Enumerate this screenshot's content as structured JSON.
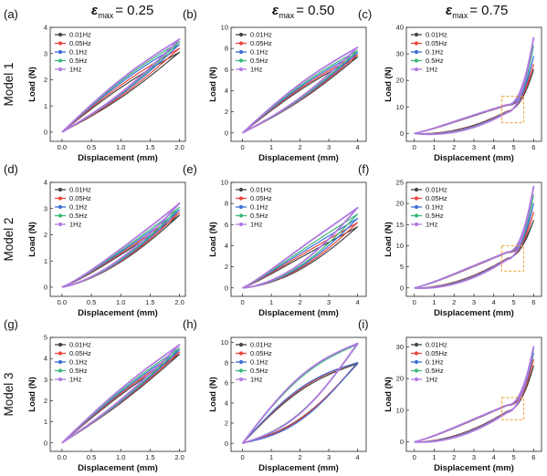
{
  "columns": [
    {
      "eps": "ε",
      "sub": "max",
      "value": "= 0.25"
    },
    {
      "eps": "ε",
      "sub": "max",
      "value": "= 0.50"
    },
    {
      "eps": "ε",
      "sub": "max",
      "value": "= 0.75"
    }
  ],
  "rows": [
    "Model 1",
    "Model 2",
    "Model 3"
  ],
  "legend": {
    "entries": [
      "0.01Hz",
      "0.05Hz",
      "0.1Hz",
      "0.5Hz",
      "1Hz"
    ],
    "colors": [
      "#444444",
      "#e8453c",
      "#3a6fd8",
      "#3cb878",
      "#b07ae0"
    ],
    "placement": "top-left"
  },
  "highlight_color": "#f0a030",
  "chart_data": [
    {
      "label": "(a)",
      "type": "line",
      "xlabel": "Displacement (mm)",
      "ylabel": "Load (N)",
      "xlim": [
        -0.2,
        2.1
      ],
      "ylim": [
        -0.35,
        4.0
      ],
      "xticks": [
        0.0,
        0.5,
        1.0,
        1.5,
        2.0
      ],
      "yticks": [
        0,
        1,
        2,
        3,
        4
      ],
      "xmax": 2,
      "mode": "lin",
      "peaks": [
        3.05,
        3.2,
        3.35,
        3.45,
        3.55
      ],
      "hyst": 0.35
    },
    {
      "label": "(b)",
      "type": "line",
      "xlabel": "Displacement (mm)",
      "ylabel": "Load (N)",
      "xlim": [
        -0.4,
        4.3
      ],
      "ylim": [
        -0.8,
        10
      ],
      "xticks": [
        0,
        1,
        2,
        3,
        4
      ],
      "yticks": [
        0,
        2,
        4,
        6,
        8,
        10
      ],
      "xmax": 4,
      "mode": "lin",
      "peaks": [
        7.2,
        7.4,
        7.6,
        7.8,
        8.1
      ],
      "hyst": 0.9
    },
    {
      "label": "(c)",
      "type": "line",
      "xlabel": "Displacement (mm)",
      "ylabel": "Load (N)",
      "xlim": [
        -0.4,
        6.4
      ],
      "ylim": [
        -3,
        40
      ],
      "xticks": [
        0,
        1,
        2,
        3,
        4,
        5,
        6
      ],
      "yticks": [
        0,
        10,
        20,
        30,
        40
      ],
      "xmax": 6,
      "mode": "knee",
      "peaks": [
        24,
        26,
        29,
        33,
        36
      ],
      "knee": 10,
      "hyst": 2.5,
      "highlight_box": {
        "x": [
          4.4,
          5.5
        ],
        "y": [
          4,
          14
        ]
      }
    },
    {
      "label": "(d)",
      "type": "line",
      "xlabel": "Displacement (mm)",
      "ylabel": "Load (N)",
      "xlim": [
        -0.2,
        2.1
      ],
      "ylim": [
        -0.35,
        4.0
      ],
      "xticks": [
        0.0,
        0.5,
        1.0,
        1.5,
        2.0
      ],
      "yticks": [
        0,
        1,
        2,
        3,
        4
      ],
      "xmax": 2,
      "mode": "soft",
      "peaks": [
        2.75,
        2.85,
        2.95,
        3.05,
        3.2
      ],
      "hyst": 0.25
    },
    {
      "label": "(e)",
      "type": "line",
      "xlabel": "Displacement (mm)",
      "ylabel": "Load (N)",
      "xlim": [
        -0.4,
        4.3
      ],
      "ylim": [
        -0.8,
        10
      ],
      "xticks": [
        0,
        1,
        2,
        3,
        4
      ],
      "yticks": [
        0,
        2,
        4,
        6,
        8,
        10
      ],
      "xmax": 4,
      "mode": "soft",
      "peaks": [
        5.8,
        6.2,
        6.6,
        7.0,
        7.6
      ],
      "hyst": 1.0
    },
    {
      "label": "(f)",
      "type": "line",
      "xlabel": "Displacement (mm)",
      "ylabel": "Load (N)",
      "xlim": [
        -0.4,
        6.4
      ],
      "ylim": [
        -2,
        25
      ],
      "xticks": [
        0,
        1,
        2,
        3,
        4,
        5,
        6
      ],
      "yticks": [
        0,
        5,
        10,
        15,
        20,
        25
      ],
      "xmax": 6,
      "mode": "knee",
      "peaks": [
        16,
        18,
        20,
        22,
        24
      ],
      "knee": 8,
      "hyst": 1.5,
      "highlight_box": {
        "x": [
          4.4,
          5.5
        ],
        "y": [
          4,
          10
        ]
      }
    },
    {
      "label": "(g)",
      "type": "line",
      "xlabel": "Displacement (mm)",
      "ylabel": "Load (N)",
      "xlim": [
        -0.2,
        2.1
      ],
      "ylim": [
        -0.4,
        5.0
      ],
      "xticks": [
        0.0,
        0.5,
        1.0,
        1.5,
        2.0
      ],
      "yticks": [
        0,
        1,
        2,
        3,
        4,
        5
      ],
      "xmax": 2,
      "mode": "lin",
      "peaks": [
        4.2,
        4.3,
        4.4,
        4.5,
        4.65
      ],
      "hyst": 0.35
    },
    {
      "label": "(h)",
      "type": "line",
      "xlabel": "Displacement (mm)",
      "ylabel": "Load (N)",
      "xlim": [
        -0.4,
        4.3
      ],
      "ylim": [
        -0.8,
        10.5
      ],
      "xticks": [
        0,
        1,
        2,
        3,
        4
      ],
      "yticks": [
        0,
        2,
        4,
        6,
        8,
        10
      ],
      "xmax": 4,
      "mode": "lin",
      "peaks": [
        7.9,
        8.0,
        8.0,
        9.8,
        9.9
      ],
      "hyst": 2.5
    },
    {
      "label": "(i)",
      "type": "line",
      "xlabel": "Displacement (mm)",
      "ylabel": "Load (N)",
      "xlim": [
        -0.4,
        6.4
      ],
      "ylim": [
        -3,
        33
      ],
      "xticks": [
        0,
        1,
        2,
        3,
        4,
        5,
        6
      ],
      "yticks": [
        0,
        10,
        20,
        30
      ],
      "xmax": 6,
      "mode": "knee",
      "peaks": [
        24,
        26,
        28,
        29,
        30
      ],
      "knee": 11,
      "hyst": 2.0,
      "highlight_box": {
        "x": [
          4.4,
          5.5
        ],
        "y": [
          7,
          14
        ]
      }
    }
  ]
}
